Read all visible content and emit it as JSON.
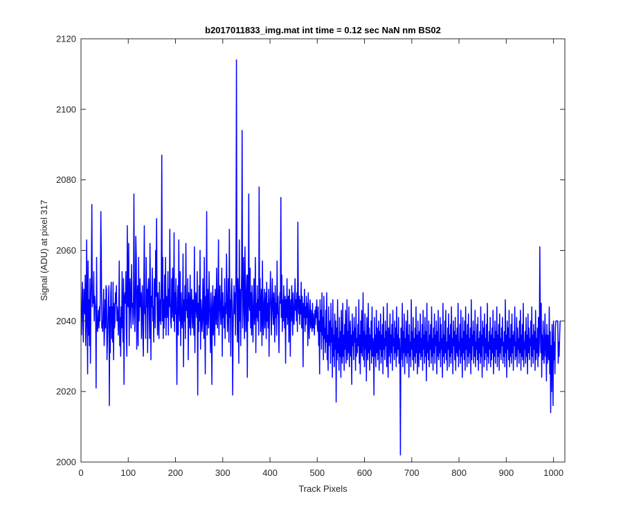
{
  "chart_data": {
    "type": "line",
    "title": "b2017011833_img.mat int time = 0.12 sec  NaN nm BS02",
    "xlabel": "Track Pixels",
    "ylabel": "Signal (ADU) at pixel 317",
    "xlim": [
      0,
      1024
    ],
    "ylim": [
      2000,
      2120
    ],
    "xticks": [
      "0",
      "100",
      "200",
      "300",
      "400",
      "500",
      "600",
      "700",
      "800",
      "900",
      "1000"
    ],
    "yticks": [
      "2000",
      "2020",
      "2040",
      "2060",
      "2080",
      "2100",
      "2120"
    ],
    "grid": false,
    "legend": "none",
    "line_color": "#0000ff",
    "series": [
      {
        "values": [
          2036,
          2045,
          2051,
          2040,
          2034,
          2049,
          2046,
          2042,
          2053,
          2033,
          2039,
          2063,
          2043,
          2025,
          2057,
          2036,
          2046,
          2033,
          2052,
          2028,
          2045,
          2052,
          2073,
          2044,
          2047,
          2045,
          2054,
          2040,
          2047,
          2044,
          2044,
          2021,
          2058,
          2040,
          2037,
          2040,
          2043,
          2038,
          2044,
          2040,
          2047,
          2071,
          2058,
          2038,
          2040,
          2037,
          2044,
          2049,
          2033,
          2038,
          2046,
          2038,
          2050,
          2049,
          2029,
          2034,
          2040,
          2045,
          2050,
          2016,
          2044,
          2031,
          2048,
          2051,
          2035,
          2044,
          2034,
          2051,
          2029,
          2045,
          2038,
          2040,
          2048,
          2045,
          2050,
          2040,
          2044,
          2042,
          2036,
          2043,
          2057,
          2033,
          2041,
          2030,
          2044,
          2038,
          2054,
          2041,
          2034,
          2052,
          2022,
          2046,
          2048,
          2045,
          2054,
          2038,
          2030,
          2067,
          2045,
          2044,
          2062,
          2033,
          2049,
          2052,
          2043,
          2038,
          2056,
          2044,
          2045,
          2039,
          2042,
          2076,
          2048,
          2037,
          2044,
          2064,
          2058,
          2032,
          2046,
          2050,
          2033,
          2058,
          2040,
          2045,
          2052,
          2044,
          2048,
          2035,
          2046,
          2050,
          2036,
          2030,
          2050,
          2067,
          2042,
          2044,
          2035,
          2058,
          2044,
          2049,
          2031,
          2048,
          2052,
          2045,
          2035,
          2062,
          2049,
          2029,
          2047,
          2044,
          2055,
          2040,
          2044,
          2034,
          2052,
          2048,
          2038,
          2060,
          2047,
          2069,
          2044,
          2036,
          2048,
          2041,
          2035,
          2051,
          2040,
          2046,
          2039,
          2052,
          2087,
          2040,
          2058,
          2035,
          2046,
          2038,
          2053,
          2041,
          2058,
          2036,
          2047,
          2044,
          2041,
          2054,
          2036,
          2049,
          2044,
          2066,
          2046,
          2040,
          2038,
          2052,
          2041,
          2055,
          2044,
          2040,
          2065,
          2037,
          2048,
          2042,
          2052,
          2038,
          2022,
          2046,
          2050,
          2036,
          2063,
          2044,
          2040,
          2054,
          2033,
          2048,
          2042,
          2038,
          2044,
          2059,
          2027,
          2046,
          2040,
          2050,
          2035,
          2062,
          2043,
          2046,
          2041,
          2052,
          2029,
          2048,
          2044,
          2038,
          2053,
          2036,
          2041,
          2049,
          2044,
          2038,
          2046,
          2042,
          2036,
          2061,
          2031,
          2044,
          2048,
          2043,
          2041,
          2054,
          2019,
          2045,
          2037,
          2050,
          2040,
          2060,
          2032,
          2046,
          2043,
          2037,
          2040,
          2052,
          2043,
          2035,
          2058,
          2041,
          2025,
          2047,
          2039,
          2071,
          2036,
          2049,
          2043,
          2038,
          2054,
          2046,
          2040,
          2031,
          2048,
          2042,
          2022,
          2044,
          2050,
          2036,
          2041,
          2047,
          2033,
          2049,
          2044,
          2039,
          2055,
          2042,
          2038,
          2049,
          2063,
          2036,
          2045,
          2050,
          2043,
          2039,
          2046,
          2055,
          2030,
          2048,
          2041,
          2044,
          2038,
          2052,
          2035,
          2045,
          2042,
          2059,
          2048,
          2037,
          2043,
          2052,
          2034,
          2066,
          2041,
          2046,
          2030,
          2048,
          2052,
          2044,
          2019,
          2038,
          2045,
          2050,
          2042,
          2048,
          2036,
          2056,
          2114,
          2046,
          2034,
          2052,
          2044,
          2028,
          2063,
          2040,
          2049,
          2033,
          2045,
          2054,
          2094,
          2038,
          2047,
          2058,
          2042,
          2035,
          2061,
          2049,
          2037,
          2047,
          2053,
          2024,
          2053,
          2040,
          2076,
          2045,
          2043,
          2055,
          2038,
          2048,
          2036,
          2050,
          2042,
          2034,
          2045,
          2052,
          2039,
          2044,
          2058,
          2031,
          2045,
          2041,
          2050,
          2040,
          2046,
          2036,
          2078,
          2043,
          2052,
          2037,
          2044,
          2049,
          2033,
          2057,
          2041,
          2036,
          2045,
          2049,
          2038,
          2043,
          2048,
          2035,
          2051,
          2040,
          2045,
          2038,
          2049,
          2030,
          2043,
          2047,
          2054,
          2041,
          2036,
          2046,
          2052,
          2043,
          2039,
          2048,
          2044,
          2034,
          2050,
          2041,
          2045,
          2036,
          2057,
          2042,
          2047,
          2039,
          2031,
          2044,
          2048,
          2045,
          2075,
          2041,
          2053,
          2037,
          2046,
          2040,
          2050,
          2043,
          2038,
          2047,
          2028,
          2046,
          2041,
          2052,
          2039,
          2044,
          2047,
          2034,
          2049,
          2042,
          2030,
          2046,
          2040,
          2050,
          2044,
          2036,
          2048,
          2041,
          2039,
          2045,
          2052,
          2043,
          2046,
          2040,
          2048,
          2037,
          2068,
          2045,
          2042,
          2047,
          2039,
          2046,
          2042,
          2051,
          2038,
          2047,
          2043,
          2027,
          2045,
          2041,
          2049,
          2037,
          2044,
          2039,
          2047,
          2041,
          2045,
          2033,
          2048,
          2040,
          2035,
          2043,
          2046,
          2038,
          2043,
          2040,
          2037,
          2045,
          2038,
          2042,
          2039,
          2036,
          2043,
          2039,
          2044,
          2041,
          2046,
          2039,
          2037,
          2044,
          2033,
          2040,
          2025,
          2046,
          2037,
          2043,
          2032,
          2048,
          2036,
          2041,
          2029,
          2047,
          2035,
          2038,
          2031,
          2043,
          2034,
          2048,
          2029,
          2036,
          2026,
          2044,
          2037,
          2033,
          2040,
          2028,
          2045,
          2034,
          2038,
          2024,
          2046,
          2030,
          2036,
          2027,
          2042,
          2032,
          2040,
          2017,
          2038,
          2029,
          2046,
          2031,
          2035,
          2026,
          2041,
          2030,
          2037,
          2024,
          2043,
          2033,
          2028,
          2045,
          2030,
          2036,
          2026,
          2039,
          2032,
          2043,
          2028,
          2034,
          2046,
          2029,
          2037,
          2031,
          2044,
          2027,
          2035,
          2040,
          2030,
          2036,
          2022,
          2042,
          2033,
          2037,
          2029,
          2041,
          2034,
          2038,
          2026,
          2044,
          2030,
          2035,
          2031,
          2039,
          2033,
          2046,
          2028,
          2036,
          2025,
          2040,
          2031,
          2043,
          2030,
          2035,
          2048,
          2029,
          2037,
          2027,
          2042,
          2032,
          2036,
          2023,
          2041,
          2034,
          2029,
          2045,
          2031,
          2038,
          2026,
          2036,
          2032,
          2040,
          2028,
          2044,
          2030,
          2035,
          2033,
          2019,
          2041,
          2030,
          2036,
          2027,
          2043,
          2031,
          2038,
          2029,
          2034,
          2040,
          2026,
          2037,
          2032,
          2042,
          2028,
          2036,
          2030,
          2039,
          2025,
          2044,
          2032,
          2035,
          2029,
          2040,
          2033,
          2037,
          2027,
          2045,
          2031,
          2024,
          2038,
          2030,
          2034,
          2042,
          2028,
          2036,
          2031,
          2039,
          2026,
          2043,
          2033,
          2035,
          2029,
          2040,
          2031,
          2038,
          2027,
          2044,
          2030,
          2036,
          2032,
          2041,
          2028,
          2035,
          2030,
          2002,
          2038,
          2029,
          2034,
          2045,
          2027,
          2037,
          2031,
          2042,
          2025,
          2035,
          2030,
          2040,
          2033,
          2028,
          2043,
          2031,
          2036,
          2024,
          2039,
          2030,
          2034,
          2027,
          2046,
          2032,
          2037,
          2029,
          2041,
          2026,
          2035,
          2030,
          2038,
          2028,
          2044,
          2031,
          2036,
          2025,
          2040,
          2033,
          2027,
          2037,
          2031,
          2042,
          2029,
          2035,
          2030,
          2039,
          2026,
          2043,
          2032,
          2036,
          2028,
          2041,
          2030,
          2037,
          2023,
          2045,
          2031,
          2034,
          2029,
          2040,
          2027,
          2036,
          2032,
          2039,
          2028,
          2044,
          2030,
          2035,
          2026,
          2038,
          2031,
          2042,
          2028,
          2036,
          2033,
          2040,
          2025,
          2037,
          2030,
          2043,
          2029,
          2034,
          2031,
          2041,
          2027,
          2039,
          2032,
          2035,
          2024,
          2045,
          2030,
          2036,
          2028,
          2040,
          2031,
          2043,
          2029,
          2034,
          2026,
          2038,
          2032,
          2042,
          2027,
          2036,
          2030,
          2039,
          2028,
          2044,
          2031,
          2035,
          2025,
          2040,
          2033,
          2037,
          2029,
          2041,
          2026,
          2036,
          2031,
          2038,
          2030,
          2045,
          2027,
          2034,
          2032,
          2039,
          2028,
          2043,
          2030,
          2035,
          2024,
          2041,
          2031,
          2037,
          2029,
          2040,
          2026,
          2044,
          2032,
          2036,
          2027,
          2039,
          2030,
          2042,
          2028,
          2035,
          2031,
          2038,
          2025,
          2046,
          2029,
          2036,
          2033,
          2040,
          2028,
          2037,
          2030,
          2043,
          2027,
          2034,
          2032,
          2039,
          2029,
          2041,
          2026,
          2035,
          2031,
          2037,
          2028,
          2044,
          2030,
          2036,
          2024,
          2040,
          2033,
          2038,
          2027,
          2042,
          2029,
          2035,
          2031,
          2039,
          2026,
          2045,
          2030,
          2034,
          2028,
          2037,
          2032,
          2041,
          2027,
          2036,
          2029,
          2038,
          2031,
          2043,
          2025,
          2035,
          2030,
          2040,
          2028,
          2037,
          2032,
          2044,
          2027,
          2036,
          2030,
          2039,
          2026,
          2042,
          2031,
          2035,
          2029,
          2038,
          2033,
          2041,
          2028,
          2034,
          2030,
          2037,
          2027,
          2046,
          2031,
          2036,
          2024,
          2040,
          2032,
          2038,
          2029,
          2043,
          2027,
          2035,
          2030,
          2039,
          2028,
          2042,
          2031,
          2036,
          2026,
          2037,
          2033,
          2044,
          2029,
          2034,
          2030,
          2041,
          2027,
          2038,
          2032,
          2035,
          2028,
          2040,
          2031,
          2043,
          2026,
          2036,
          2030,
          2039,
          2029,
          2045,
          2027,
          2034,
          2032,
          2037,
          2028,
          2041,
          2030,
          2036,
          2025,
          2042,
          2031,
          2038,
          2029,
          2035,
          2033,
          2040,
          2027,
          2044,
          2030,
          2036,
          2028,
          2039,
          2032,
          2037,
          2026,
          2043,
          2029,
          2035,
          2031,
          2038,
          2027,
          2041,
          2030,
          2034,
          2061,
          2040,
          2031,
          2045,
          2024,
          2036,
          2029,
          2040,
          2033,
          2028,
          2035,
          2042,
          2030,
          2036,
          2023,
          2039,
          2028,
          2036,
          2031,
          2029,
          2044,
          2025,
          2037,
          2014,
          2033,
          2020,
          2039,
          2032,
          2016,
          2040,
          2029,
          2034,
          2025,
          2038,
          2040,
          2040,
          2040,
          2040,
          2040,
          2028,
          2034,
          2030,
          2036,
          2040
        ]
      }
    ]
  }
}
